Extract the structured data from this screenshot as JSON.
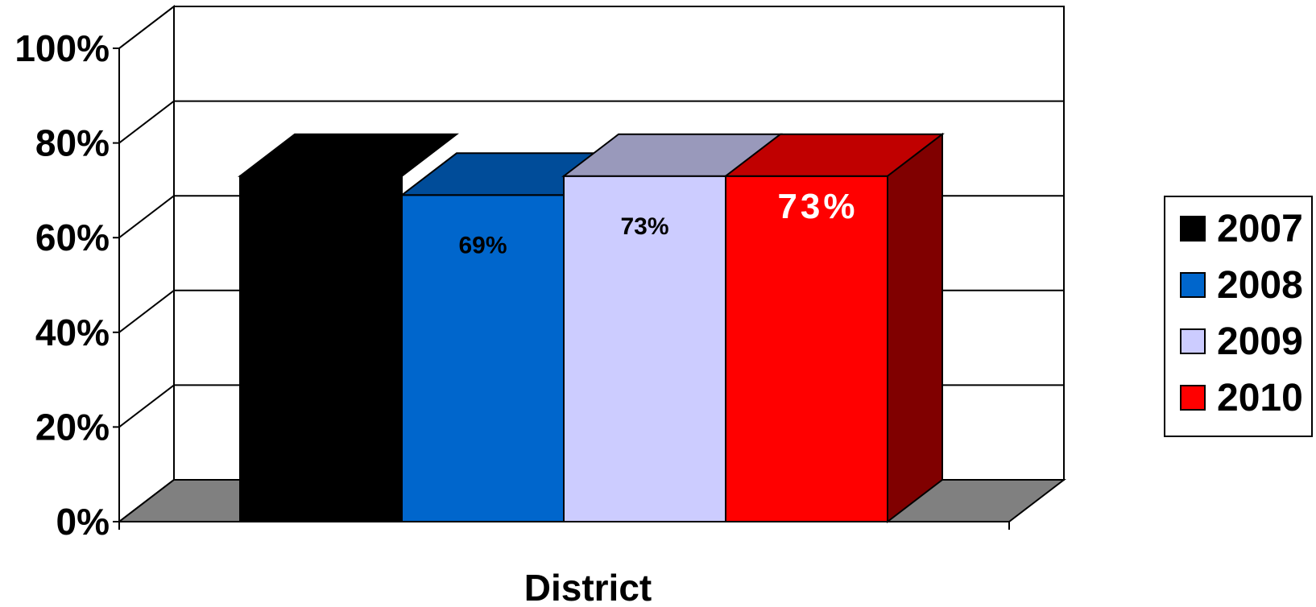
{
  "chart_data": {
    "type": "bar",
    "three_d": true,
    "categories": [
      "District"
    ],
    "series": [
      {
        "name": "2007",
        "values": [
          73
        ],
        "color": "#000000",
        "top_color": "#000000",
        "side_color": "#000000",
        "label": "",
        "label_color": "#000000"
      },
      {
        "name": "2008",
        "values": [
          69
        ],
        "color": "#0066CC",
        "top_color": "#004C99",
        "side_color": "#003366",
        "label": "69%",
        "label_color": "#000000"
      },
      {
        "name": "2009",
        "values": [
          73
        ],
        "color": "#CCCCFF",
        "top_color": "#9999BB",
        "side_color": "#9999BB",
        "label": "73%",
        "label_color": "#000000"
      },
      {
        "name": "2010",
        "values": [
          73
        ],
        "color": "#FF0000",
        "top_color": "#C00000",
        "side_color": "#800000",
        "label": "73%",
        "label_color": "#FFFFFF"
      }
    ],
    "y_ticks": [
      "0%",
      "20%",
      "40%",
      "60%",
      "80%",
      "100%"
    ],
    "ylim": [
      0,
      100
    ],
    "xlabel": "District",
    "ylabel": "",
    "title": "",
    "grid": true,
    "legend_position": "right",
    "floor_color": "#808080"
  },
  "legend": {
    "items": [
      {
        "label": "2007",
        "color": "#000000"
      },
      {
        "label": "2008",
        "color": "#0066CC"
      },
      {
        "label": "2009",
        "color": "#CCCCFF"
      },
      {
        "label": "2010",
        "color": "#FF0000"
      }
    ]
  }
}
